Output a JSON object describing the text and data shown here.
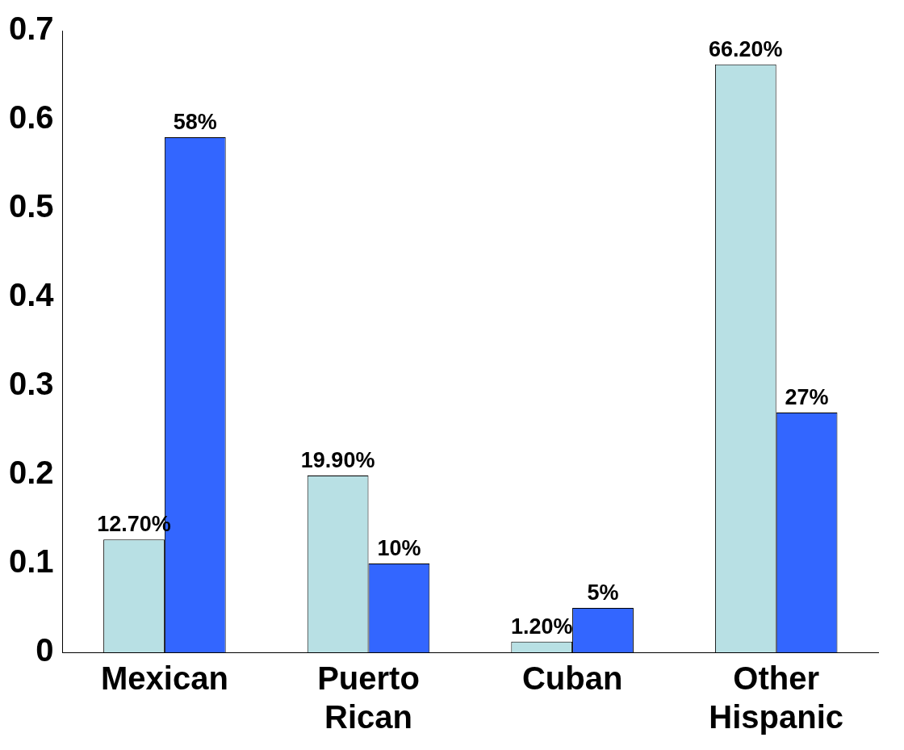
{
  "chart_data": {
    "type": "bar",
    "categories": [
      "Mexican",
      "Puerto Rican",
      "Cuban",
      "Other Hispanic"
    ],
    "series": [
      {
        "color": "#b8e0e4",
        "values": [
          0.127,
          0.199,
          0.012,
          0.662
        ],
        "value_labels": [
          "12.70%",
          "19.90%",
          "1.20%",
          "66.20%"
        ]
      },
      {
        "color": "#3366ff",
        "values": [
          0.58,
          0.1,
          0.05,
          0.27
        ],
        "value_labels": [
          "58%",
          "10%",
          "5%",
          "27%"
        ]
      }
    ],
    "ylim": [
      0,
      0.7
    ],
    "yticks": [
      0,
      0.1,
      0.2,
      0.3,
      0.4,
      0.5,
      0.6,
      0.7
    ]
  }
}
